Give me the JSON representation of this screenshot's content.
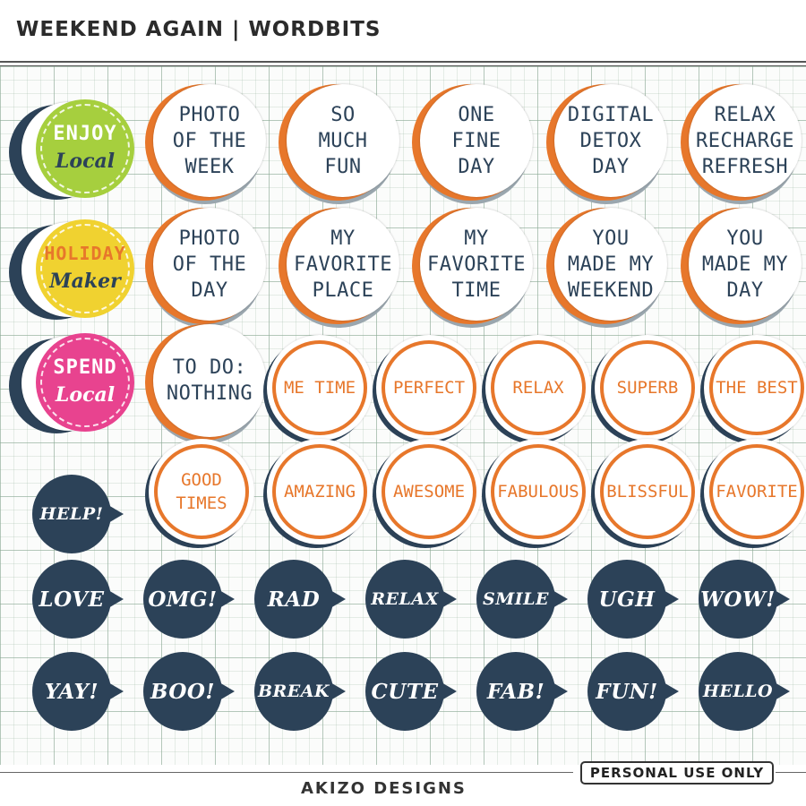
{
  "header": {
    "title": "WEEKEND AGAIN | WORDBITS"
  },
  "colors": {
    "navy": "#2c4258",
    "orange": "#e7772b",
    "lime": "#a6cf3e",
    "yellow": "#f0d230",
    "pink": "#e8438f",
    "gray": "#9aa6ae"
  },
  "badges": [
    {
      "top": "ENJOY",
      "bottom": "Local",
      "color": "#a6cf3e",
      "bottom_color": "#2c4258"
    },
    {
      "top": "HOLIDAY",
      "bottom": "Maker",
      "color": "#f0d230",
      "top_color": "#e7772b",
      "bottom_color": "#2c4258"
    },
    {
      "top": "SPEND",
      "bottom": "Local",
      "color": "#e8438f",
      "bottom_color": "#ffffff"
    }
  ],
  "white_stickers": [
    "PHOTO\nOF THE\nWEEK",
    "SO\nMUCH\nFUN",
    "ONE\nFINE\nDAY",
    "DIGITAL\nDETOX\nDAY",
    "RELAX\nRECHARGE\nREFRESH",
    "PHOTO\nOF THE\nDAY",
    "MY\nFAVORITE\nPLACE",
    "MY\nFAVORITE\nTIME",
    "YOU\nMADE MY\nWEEKEND",
    "YOU\nMADE MY\nDAY",
    "TO DO:\nNOTHING"
  ],
  "ring_stickers": [
    "ME TIME",
    "PERFECT",
    "RELAX",
    "SUPERB",
    "THE BEST",
    "GOOD\nTIMES",
    "AMAZING",
    "AWESOME",
    "FABULOUS",
    "BLISSFUL",
    "FAVORITE"
  ],
  "bubbles": [
    "HELP!",
    "LOVE",
    "OMG!",
    "RAD",
    "RELAX",
    "SMILE",
    "UGH",
    "WOW!",
    "YAY!",
    "BOO!",
    "BREAK",
    "CUTE",
    "FAB!",
    "FUN!",
    "HELLO"
  ],
  "footer": {
    "brand": "AKIZO DESIGNS",
    "license": "PERSONAL USE ONLY"
  }
}
